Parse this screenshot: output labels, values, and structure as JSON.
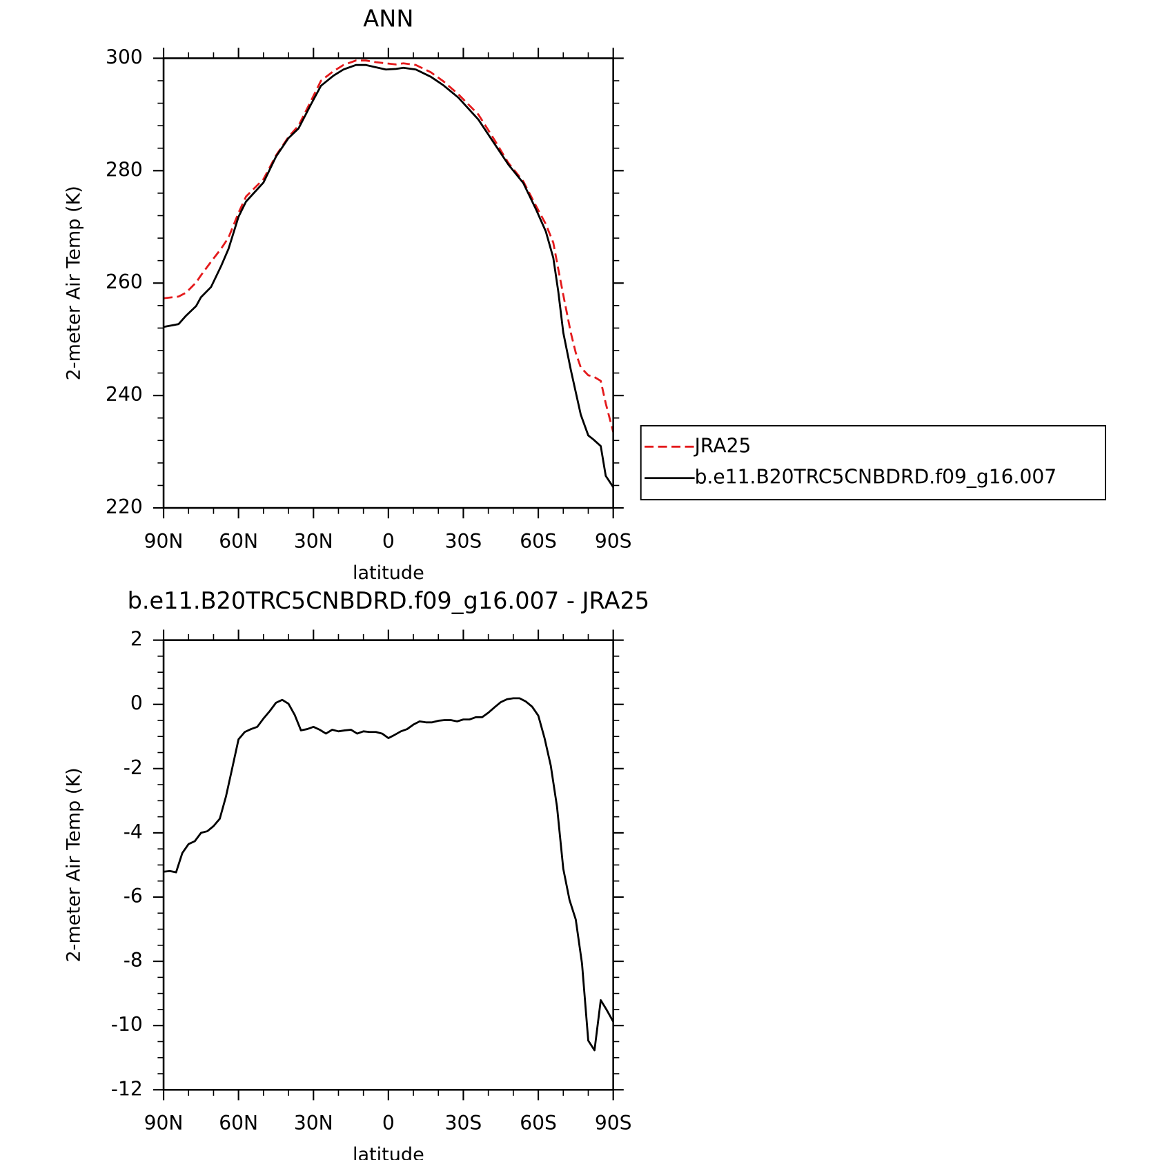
{
  "chart_data": [
    {
      "type": "line",
      "title": "ANN",
      "xlabel": "latitude",
      "ylabel": "2-meter Air Temp (K)",
      "x": [
        90,
        84,
        81,
        77,
        75,
        71,
        67,
        64,
        60,
        57,
        50,
        45,
        40,
        36,
        31,
        27,
        22,
        18,
        13,
        9,
        5,
        1,
        -3,
        -6,
        -11,
        -17,
        -22,
        -28,
        -36,
        -42,
        -48,
        -54,
        -59,
        -63,
        -66,
        -68,
        -70,
        -73,
        -75,
        -77,
        -80,
        -82,
        -85,
        -87,
        -90
      ],
      "series": [
        {
          "name": "JRA25",
          "color": "#e41a1c",
          "linestyle": "dashed",
          "values": [
            257.3,
            257.6,
            258.3,
            260.1,
            261.4,
            263.8,
            266.1,
            268.1,
            272.5,
            275.4,
            278.5,
            282.7,
            286,
            288,
            292.4,
            296,
            297.7,
            298.8,
            299.6,
            299.6,
            299.3,
            299.1,
            298.9,
            299.1,
            298.8,
            297.5,
            295.9,
            293.6,
            290,
            285.8,
            281.4,
            278.1,
            273.8,
            270.5,
            267.2,
            262.5,
            257.9,
            251.2,
            247.6,
            245,
            243.6,
            243.4,
            242.6,
            238.6,
            233.5
          ]
        },
        {
          "name": "b.e11.B20TRC5CNBDRD.f09_g16.007",
          "color": "#000000",
          "linestyle": "solid",
          "values": [
            252.2,
            252.7,
            254.2,
            255.9,
            257.5,
            259.3,
            263,
            266.1,
            271.8,
            274.5,
            277.9,
            282.5,
            285.8,
            287.5,
            291.8,
            295.1,
            296.9,
            298,
            298.8,
            298.8,
            298.4,
            298,
            298.1,
            298.3,
            298,
            296.7,
            295.2,
            293,
            289.1,
            285.1,
            281.1,
            277.8,
            273.2,
            269.2,
            264.5,
            258.5,
            251.2,
            244.6,
            240.6,
            236.6,
            232.9,
            232.2,
            231,
            225.7,
            223.7
          ]
        }
      ],
      "xlim": [
        90,
        -90
      ],
      "xticks": [
        {
          "value": 90,
          "label": "90N"
        },
        {
          "value": 60,
          "label": "60N"
        },
        {
          "value": 30,
          "label": "30N"
        },
        0,
        {
          "value": -30,
          "label": "30S"
        },
        {
          "value": -60,
          "label": "60S"
        },
        {
          "value": -90,
          "label": "90S"
        }
      ],
      "xminorticks": [
        80,
        70,
        50,
        40,
        20,
        10,
        -10,
        -20,
        -40,
        -50,
        -70,
        -80
      ],
      "ylim": [
        220,
        300
      ],
      "yticks": [
        220,
        240,
        260,
        280,
        300
      ],
      "yminorticks": [
        224,
        228,
        232,
        236,
        244,
        248,
        252,
        256,
        264,
        268,
        272,
        276,
        284,
        288,
        292,
        296
      ],
      "legend": "outside right"
    },
    {
      "type": "line",
      "title": "b.e11.B20TRC5CNBDRD.f09_g16.007 - JRA25",
      "xlabel": "latitude",
      "ylabel": "2-meter Air Temp (K)",
      "x": [
        90,
        87.5,
        85,
        82.5,
        80,
        77.5,
        75,
        72.5,
        70,
        67.5,
        65,
        62.5,
        60,
        57.5,
        55,
        52.5,
        50,
        47.5,
        45,
        42.5,
        40,
        37.5,
        35,
        32.5,
        30,
        27.5,
        25,
        22.5,
        20,
        17.5,
        15,
        12.5,
        10,
        7.5,
        5,
        2.5,
        0,
        -2.5,
        -5,
        -7.5,
        -10,
        -12.5,
        -15,
        -17.5,
        -20,
        -22.5,
        -25,
        -27.5,
        -30,
        -32.5,
        -35,
        -37.5,
        -40,
        -42.5,
        -45,
        -47.5,
        -50,
        -52.5,
        -55,
        -57.5,
        -60,
        -62.5,
        -65,
        -67.5,
        -70,
        -72.5,
        -75,
        -77.5,
        -80,
        -82.5,
        -85,
        -87.5,
        -90
      ],
      "series": [
        {
          "color": "#000000",
          "linestyle": "solid",
          "values": [
            -5.21,
            -5.19,
            -5.23,
            -4.63,
            -4.35,
            -4.26,
            -4.0,
            -3.95,
            -3.79,
            -3.56,
            -2.86,
            -1.98,
            -1.09,
            -0.86,
            -0.77,
            -0.7,
            -0.44,
            -0.21,
            0.05,
            0.14,
            0.02,
            -0.33,
            -0.81,
            -0.77,
            -0.7,
            -0.79,
            -0.91,
            -0.79,
            -0.84,
            -0.81,
            -0.79,
            -0.91,
            -0.84,
            -0.86,
            -0.86,
            -0.91,
            -1.05,
            -0.95,
            -0.84,
            -0.77,
            -0.63,
            -0.53,
            -0.56,
            -0.56,
            -0.51,
            -0.49,
            -0.49,
            -0.53,
            -0.47,
            -0.47,
            -0.4,
            -0.4,
            -0.26,
            -0.09,
            0.07,
            0.16,
            0.19,
            0.19,
            0.09,
            -0.07,
            -0.35,
            -1.05,
            -1.91,
            -3.19,
            -5.12,
            -6.09,
            -6.7,
            -8.07,
            -10.47,
            -10.77,
            -9.21,
            -9.53,
            -9.88
          ]
        }
      ],
      "xlim": [
        90,
        -90
      ],
      "xticks": [
        {
          "value": 90,
          "label": "90N"
        },
        {
          "value": 60,
          "label": "60N"
        },
        {
          "value": 30,
          "label": "30N"
        },
        0,
        {
          "value": -30,
          "label": "30S"
        },
        {
          "value": -60,
          "label": "60S"
        },
        {
          "value": -90,
          "label": "90S"
        }
      ],
      "xminorticks": [
        80,
        70,
        50,
        40,
        20,
        10,
        -10,
        -20,
        -40,
        -50,
        -70,
        -80
      ],
      "ylim": [
        -12,
        2
      ],
      "yticks": [
        -12,
        -10,
        -8,
        -6,
        -4,
        -2,
        0,
        2
      ],
      "yminorticks": [
        -11.5,
        -11,
        -10.5,
        -9.5,
        -9,
        -8.5,
        -7.5,
        -7,
        -6.5,
        -5.5,
        -5,
        -4.5,
        -3.5,
        -3,
        -2.5,
        -1.5,
        -1,
        -0.5,
        0.5,
        1,
        1.5
      ]
    }
  ]
}
